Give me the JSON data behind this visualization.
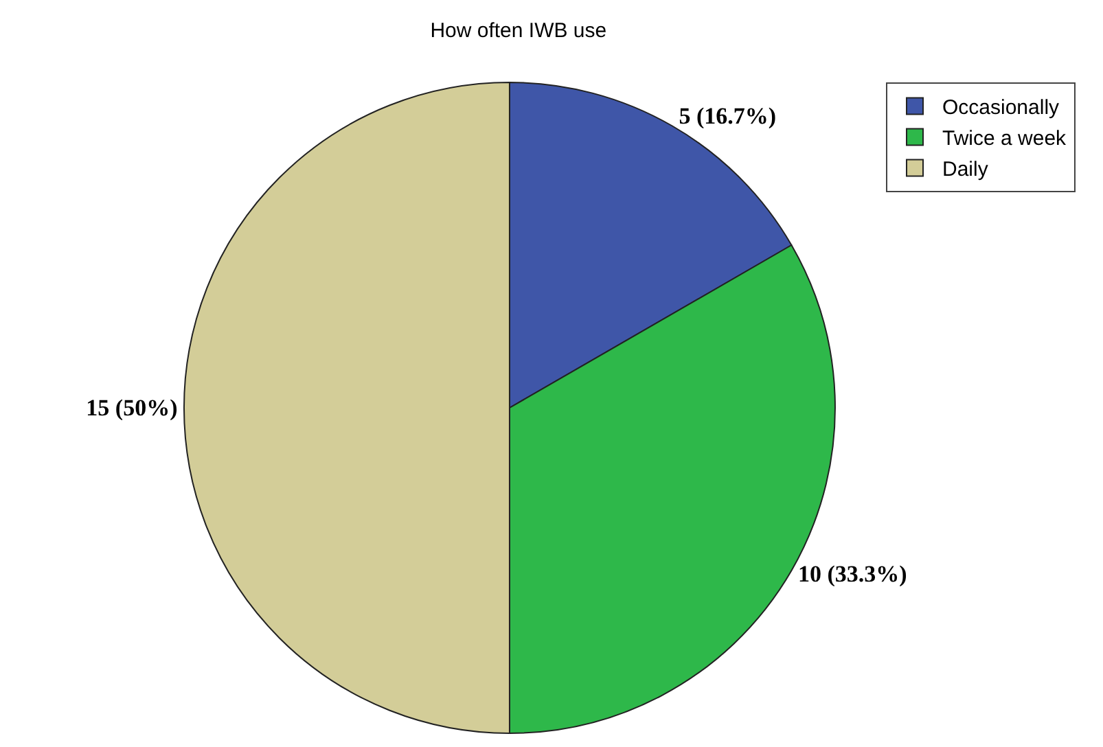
{
  "chart_data": {
    "type": "pie",
    "title": "How often IWB use",
    "categories": [
      "Occasionally",
      "Twice a week",
      "Daily"
    ],
    "values": [
      5,
      10,
      15
    ],
    "colors": [
      "#3f56a8",
      "#2eb84a",
      "#d3cd98"
    ],
    "value_labels": [
      "5 (16.7%)",
      "10 (33.3%)",
      "15 (50%)"
    ],
    "legend": "top right"
  }
}
